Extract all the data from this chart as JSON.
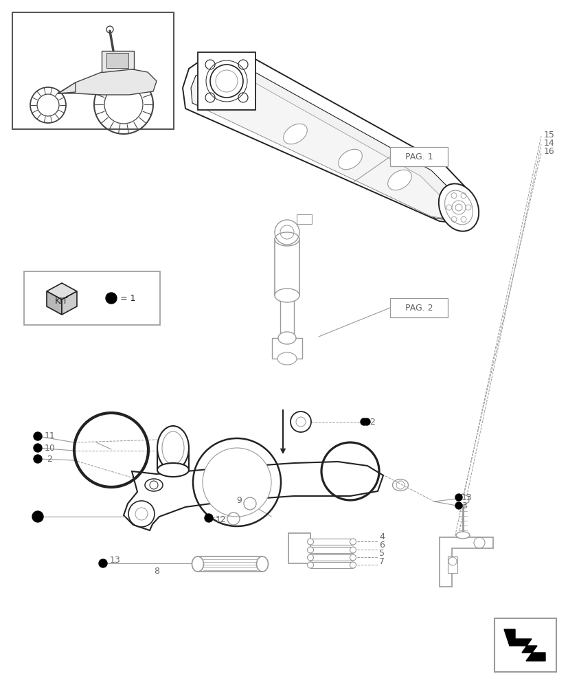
{
  "bg_color": "#ffffff",
  "lc": "#222222",
  "gc": "#666666",
  "lg": "#999999",
  "figsize": [
    8.28,
    10.0
  ],
  "dpi": 100,
  "pag1_label": "PAG. 1",
  "pag2_label": "PAG. 2",
  "kit_label": "KIT",
  "eq1_label": "= 1"
}
